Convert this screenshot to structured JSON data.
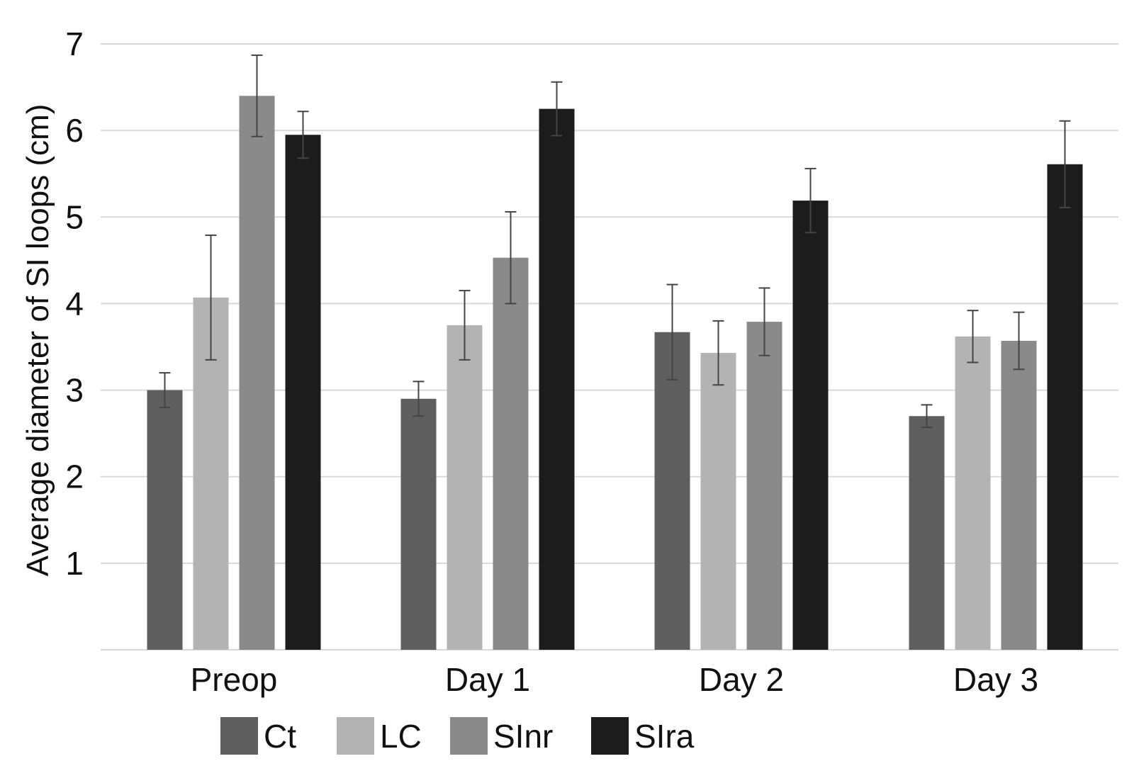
{
  "chart_data": {
    "type": "bar",
    "title": "",
    "xlabel": "",
    "ylabel": "Average diameter of SI loops (cm)",
    "ylim": [
      0,
      7
    ],
    "yticks": [
      1,
      2,
      3,
      4,
      5,
      6,
      7
    ],
    "grid": true,
    "legend_position": "bottom",
    "categories": [
      "Preop",
      "Day 1",
      "Day 2",
      "Day 3"
    ],
    "series": [
      {
        "name": "Ct",
        "color": "#5f5f5f",
        "values": [
          3.0,
          2.9,
          3.67,
          2.7
        ],
        "errors": [
          0.2,
          0.2,
          0.55,
          0.13
        ]
      },
      {
        "name": "LC",
        "color": "#b3b3b3",
        "values": [
          4.07,
          3.75,
          3.43,
          3.62
        ],
        "errors": [
          0.72,
          0.4,
          0.37,
          0.3
        ]
      },
      {
        "name": "SInr",
        "color": "#8a8a8a",
        "values": [
          6.4,
          4.53,
          3.79,
          3.57
        ],
        "errors": [
          0.47,
          0.53,
          0.39,
          0.33
        ]
      },
      {
        "name": "SIra",
        "color": "#1c1c1c",
        "values": [
          5.95,
          6.25,
          5.19,
          5.61
        ],
        "errors": [
          0.27,
          0.31,
          0.37,
          0.5
        ]
      }
    ]
  }
}
